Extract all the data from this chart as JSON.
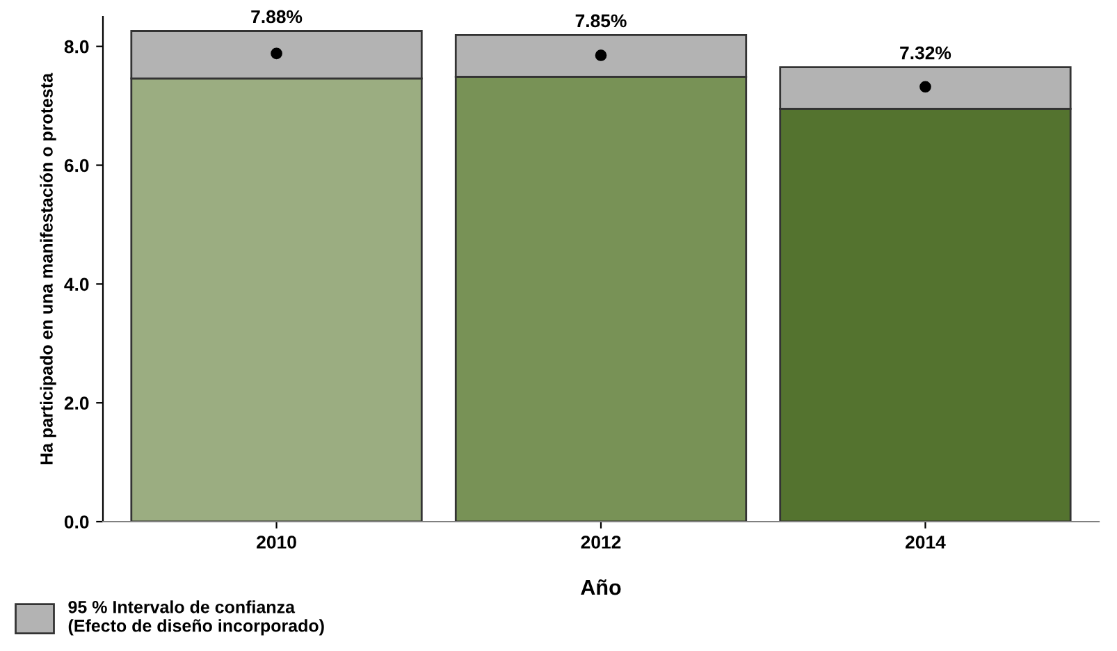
{
  "chart_data": {
    "type": "bar",
    "stacked": true,
    "xlabel": "Año",
    "ylabel": "Ha participado en una manifestación o protesta",
    "categories": [
      "2010",
      "2012",
      "2014"
    ],
    "series": [
      {
        "values": [
          7.46,
          7.49,
          6.95
        ],
        "colors": [
          "#9bad81",
          "#789256",
          "#54732f"
        ]
      },
      {
        "name": "95 % Intervalo de confianza\n(Efecto de diseño incorporado)",
        "color": "#b3b3b3",
        "values": [
          0.8,
          0.7,
          0.7
        ]
      },
      {
        "type": "scatter",
        "values": [
          7.88,
          7.85,
          7.32
        ],
        "color": "#000000",
        "value_labels": [
          "7.88%",
          "7.85%",
          "7.32%"
        ]
      }
    ],
    "ylim": [
      0,
      8.5
    ],
    "yticks": [
      {
        "value": 0,
        "label": "0.0"
      },
      {
        "value": 2,
        "label": "2.0"
      },
      {
        "value": 4,
        "label": "4.0"
      },
      {
        "value": 6,
        "label": "6.0"
      },
      {
        "value": 8,
        "label": "8.0"
      }
    ],
    "grid": false,
    "legend": "bottom left",
    "marker": "circle"
  }
}
